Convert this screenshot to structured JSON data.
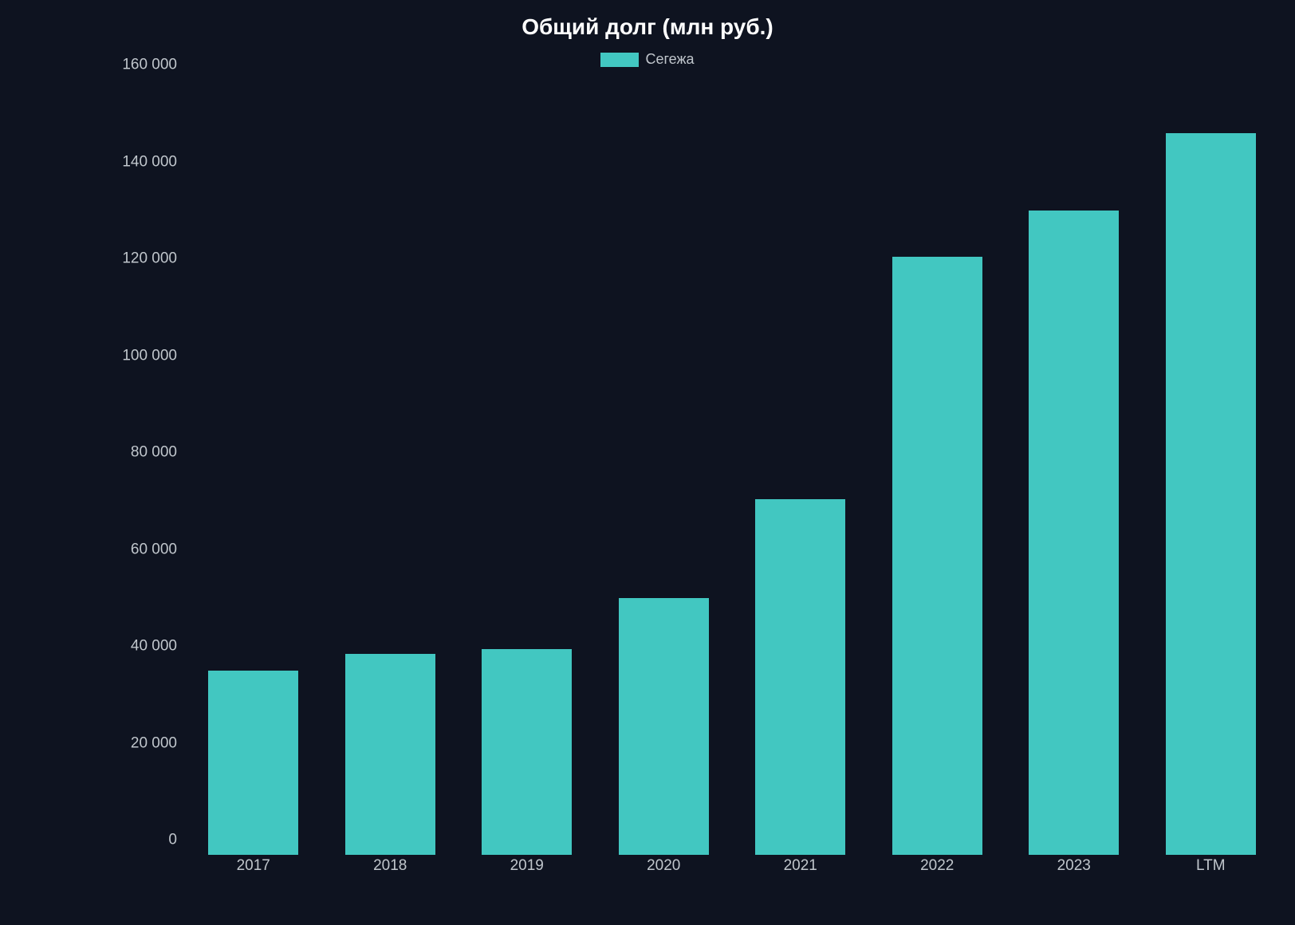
{
  "chart": {
    "type": "bar",
    "title": "Общий долг  (млн руб.)",
    "title_fontsize": 28,
    "title_color": "#ffffff",
    "background_color": "#0e1320",
    "legend": {
      "label": "Сегежа",
      "swatch_color": "#42c7c1",
      "text_color": "#c0c6cc",
      "fontsize": 18
    },
    "bar_color": "#42c7c1",
    "bar_width_ratio": 0.66,
    "axis_label_color": "#c0c6cc",
    "axis_fontsize": 19,
    "y": {
      "min": 0,
      "max": 160000,
      "tick_step": 20000,
      "ticks": [
        {
          "v": 0,
          "label": "0"
        },
        {
          "v": 20000,
          "label": "20 000"
        },
        {
          "v": 40000,
          "label": "40 000"
        },
        {
          "v": 60000,
          "label": "60 000"
        },
        {
          "v": 80000,
          "label": "80 000"
        },
        {
          "v": 100000,
          "label": "100 000"
        },
        {
          "v": 120000,
          "label": "120 000"
        },
        {
          "v": 140000,
          "label": "140 000"
        },
        {
          "v": 160000,
          "label": "160 000"
        }
      ]
    },
    "categories": [
      "2017",
      "2018",
      "2019",
      "2020",
      "2021",
      "2022",
      "2023",
      "LTM"
    ],
    "values": [
      38000,
      41500,
      42500,
      53000,
      73500,
      123500,
      133000,
      149000
    ]
  }
}
